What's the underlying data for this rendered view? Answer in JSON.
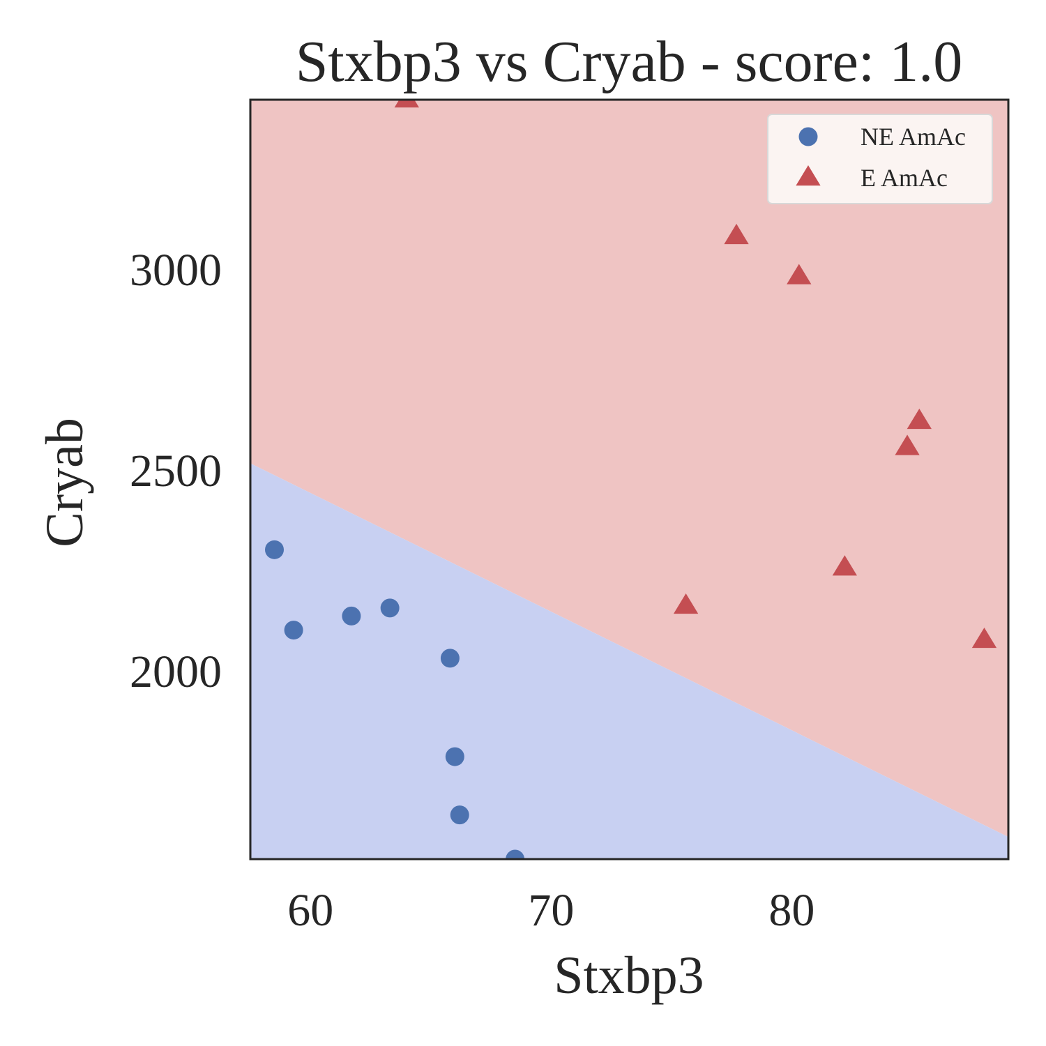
{
  "chart_data": {
    "type": "scatter",
    "title": "Stxbp3 vs Cryab - score: 1.0",
    "xlabel": "Stxbp3",
    "ylabel": "Cryab",
    "xlim": [
      57.5,
      89.0
    ],
    "ylim": [
      1530,
      3420
    ],
    "x_ticks": [
      60,
      70,
      80
    ],
    "x_tick_labels": [
      "60",
      "70",
      "80"
    ],
    "y_ticks": [
      2000,
      2500,
      3000
    ],
    "y_tick_labels": [
      "2000",
      "2500",
      "3000"
    ],
    "grid": false,
    "legend_position": "top-right",
    "decision_boundary": {
      "points": [
        [
          57.5,
          2515
        ],
        [
          89.0,
          1585
        ]
      ],
      "below_class": "NE AmAc",
      "above_class": "E AmAc",
      "below_color": "#c8d0f2",
      "above_color": "#efc4c3"
    },
    "series": [
      {
        "name": "NE AmAc",
        "marker": "circle",
        "color": "#4c72b0",
        "points": [
          [
            58.5,
            2300
          ],
          [
            59.3,
            2100
          ],
          [
            61.7,
            2135
          ],
          [
            63.3,
            2155
          ],
          [
            65.8,
            2030
          ],
          [
            66.0,
            1785
          ],
          [
            66.2,
            1640
          ],
          [
            68.5,
            1530
          ]
        ]
      },
      {
        "name": "E AmAc",
        "marker": "triangle",
        "color": "#c44e52",
        "points": [
          [
            64.0,
            3420
          ],
          [
            77.7,
            3080
          ],
          [
            80.3,
            2980
          ],
          [
            75.6,
            2160
          ],
          [
            82.2,
            2255
          ],
          [
            84.8,
            2555
          ],
          [
            85.3,
            2620
          ],
          [
            88.0,
            2075
          ]
        ]
      }
    ]
  }
}
